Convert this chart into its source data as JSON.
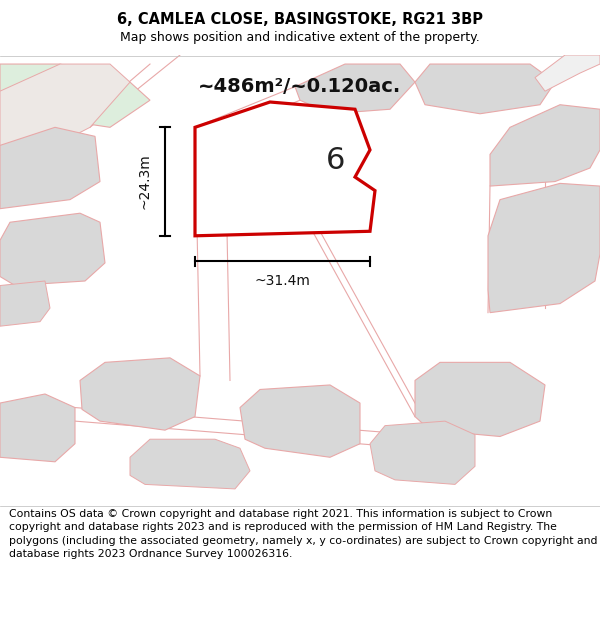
{
  "title": "6, CAMLEA CLOSE, BASINGSTOKE, RG21 3BP",
  "subtitle": "Map shows position and indicative extent of the property.",
  "footer": "Contains OS data © Crown copyright and database right 2021. This information is subject to Crown copyright and database rights 2023 and is reproduced with the permission of HM Land Registry. The polygons (including the associated geometry, namely x, y co-ordinates) are subject to Crown copyright and database rights 2023 Ordnance Survey 100026316.",
  "area_label": "~486m²/~0.120ac.",
  "width_label": "~31.4m",
  "height_label": "~24.3m",
  "plot_number": "6",
  "map_bg": "#f2f0ee",
  "green_fill": "#ddeedd",
  "building_fill": "#d8d8d8",
  "road_fill": "#e8e0dc",
  "outline_color": "#e8a8a8",
  "main_red": "#cc0000",
  "title_fontsize": 10.5,
  "subtitle_fontsize": 9,
  "footer_fontsize": 7.8
}
